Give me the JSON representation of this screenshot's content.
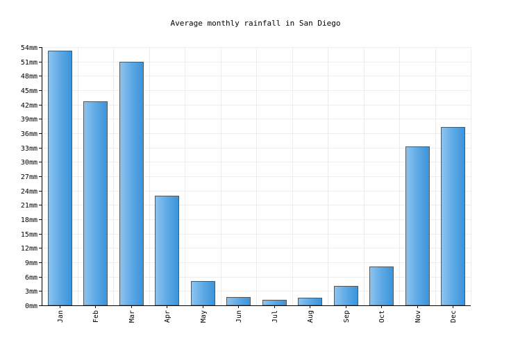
{
  "chart_data": {
    "type": "bar",
    "title": "Average monthly rainfall in San Diego",
    "xlabel": "",
    "ylabel": "",
    "categories": [
      "Jan",
      "Feb",
      "Mar",
      "Apr",
      "May",
      "Jun",
      "Jul",
      "Aug",
      "Sep",
      "Oct",
      "Nov",
      "Dec"
    ],
    "values": [
      53.3,
      42.7,
      51.0,
      23.0,
      5.1,
      1.8,
      1.2,
      1.6,
      4.1,
      8.2,
      33.3,
      37.3
    ],
    "unit": "mm",
    "ylim": [
      0,
      54
    ],
    "ytick_step": 3,
    "grid": true,
    "bar_color": "#4a9fe0",
    "bar_edge_color": "#555555"
  }
}
